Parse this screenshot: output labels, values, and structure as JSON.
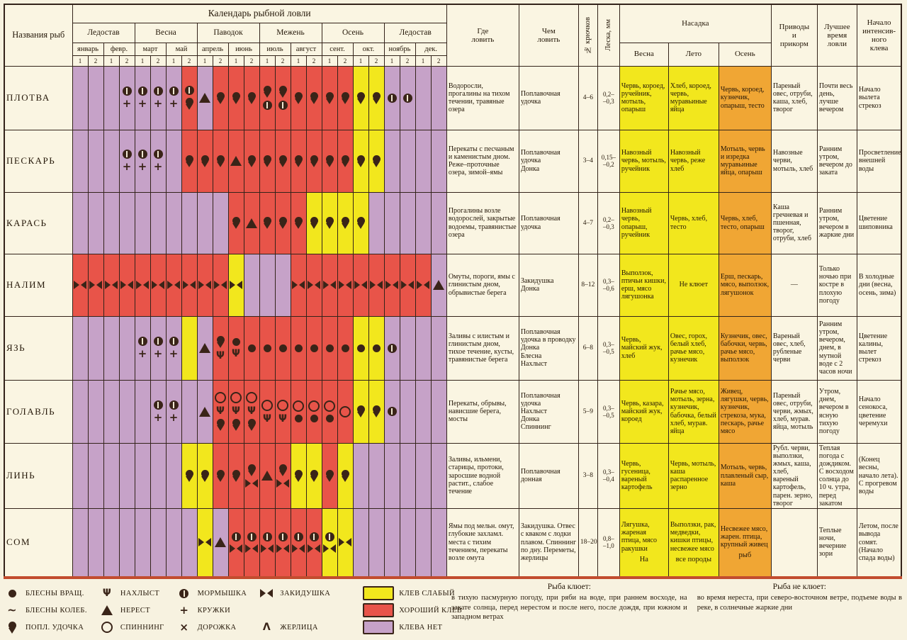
{
  "title": "Календарь рыбной ловли",
  "header": {
    "fish_col": "Названия\nрыб",
    "seasons": [
      "Ледостав",
      "Весна",
      "Паводок",
      "Межень",
      "Осень",
      "Ледостав"
    ],
    "months": [
      "январь",
      "февр.",
      "март",
      "май",
      "апрель",
      "июнь",
      "июль",
      "август",
      "сент.",
      "окт.",
      "ноябрь",
      "дек."
    ],
    "half_labels": [
      "1",
      "2"
    ],
    "where": "Где\nловить",
    "tackle": "Чем\nловить",
    "hooks": "№ крючков",
    "line": "Леска, мм",
    "bait": "Насадка",
    "bait_sub": [
      "Весна",
      "Лето",
      "Осень"
    ],
    "feed": "Приводы\nи\nприкорм",
    "best": "Лучшее\nвремя\nловли",
    "start": "Начало\nинтенсив-\nного\nклева"
  },
  "colors": {
    "good_bite": "#e85449",
    "weak_bite": "#f2e71d",
    "no_bite": "#c6a2c8",
    "bait_autumn": "#f0a634",
    "paper": "#faf5e2",
    "ink": "#3a2418"
  },
  "rows": [
    {
      "name": "ПЛОТВА",
      "cal": [
        "p",
        "p",
        "p",
        "p:morm+kru",
        "p:morm+kru",
        "p:morm+kru",
        "p:morm+kru",
        "r:morm+float",
        "p:nerest",
        "r:float",
        "r:float",
        "r:float",
        "r:float+morm",
        "r:float+morm",
        "r:float",
        "r:float",
        "r:float",
        "r:float",
        "y:float",
        "y:float",
        "p:morm",
        "p:morm",
        "p",
        "p"
      ],
      "where": "Водоросли, прогалины на тихом течении, травяные озера",
      "tackle": "Поплавочная удочка",
      "hooks": "4–6",
      "line": "0,2–\n–0,3",
      "spring": "Червь, короед, ручейник, мотыль, опарыш",
      "summer": "Хлеб, короед, червь, муравьиные яйца",
      "autumn": "Червь, короед, кузнечик, опарыш, тесто",
      "feed": "Пареный овес, отруби, каша, хлеб, творог",
      "best": "Почти весь день, лучше вечером",
      "start": "Начало вылета стрекоз"
    },
    {
      "name": "ПЕСКАРЬ",
      "cal": [
        "p",
        "p",
        "p",
        "p:morm+kru",
        "p:morm+kru",
        "p:morm+kru",
        "p",
        "r:float",
        "r:float",
        "r:float",
        "r:nerest",
        "r:float",
        "r:float",
        "r:float",
        "r:float",
        "r:float",
        "r:float",
        "r:float",
        "y:float",
        "y:float",
        "p",
        "p",
        "p",
        "p"
      ],
      "where": "Перекаты с песчаным и каменистым дном. Реже–проточные озера, зимой–ямы",
      "tackle": "Поплавочная удочка\nДонка",
      "hooks": "3–4",
      "line": "0,15–\n–0,2",
      "spring": "Навозный червь, мотыль, ручейник",
      "summer": "Навозный червь, реже хлеб",
      "autumn": "Мотыль, червь и изредка муравьиные яйца, опарыш",
      "feed": "Навозные черви, мотыль, хлеб",
      "best": "Ранним утром, вечером до заката",
      "start": "Просветление внешней воды"
    },
    {
      "name": "КАРАСЬ",
      "cal": [
        "p",
        "p",
        "p",
        "p",
        "p",
        "p",
        "p",
        "p",
        "p",
        "p",
        "r:float",
        "r:nerest",
        "r:float",
        "r:float",
        "r:float",
        "y:float",
        "y:float",
        "y:float",
        "y:float",
        "p",
        "p",
        "p",
        "p",
        "p"
      ],
      "where": "Прогалины возле водорослей, закрытые водоемы, травянистые озера",
      "tackle": "Поплавочная удочка",
      "hooks": "4–7",
      "line": "0,2–\n–0,3",
      "spring": "Навозный червь, опарыш, ручейник",
      "summer": "Червь, хлеб, тесто",
      "autumn": "Червь, хлеб, тесто, опарыш",
      "feed": "Каша гречневая и пшенная, творог, отруби, хлеб",
      "best": "Ранним утром, вечером в жаркие дни",
      "start": "Цветение шиповника"
    },
    {
      "name": "НАЛИМ",
      "cal": [
        "r:zakid",
        "r:zakid",
        "r:zakid",
        "r:zakid",
        "r:zakid",
        "r:zakid",
        "r:zakid",
        "r:zakid",
        "r:zakid",
        "r:zakid",
        "y:zakid",
        "p",
        "p",
        "p",
        "r:zakid",
        "r:zakid",
        "r:zakid",
        "r:zakid",
        "r:zakid",
        "r:zakid",
        "r:zakid",
        "r:zakid",
        "r:zakid",
        "p:nerest"
      ],
      "where": "Омуты, пороги, ямы с глинистым дном, обрывистые берега",
      "tackle": "Закидушка\nДонка",
      "hooks": "8–12",
      "line": "0,3–\n–0,6",
      "spring": "Выползок, птичьи кишки, ерш, мясо лягушонка",
      "summer": "Не клюет",
      "autumn": "Ерш, пескарь, мясо, выползок, лягушонок",
      "feed": "—",
      "best": "Только ночью при костре в плохую погоду",
      "start": "В холодные дни (весна, осень, зима)"
    },
    {
      "name": "ЯЗЬ",
      "cal": [
        "p",
        "p",
        "p",
        "p",
        "p:morm+kru",
        "p:morm+kru",
        "p:morm+kru",
        "y",
        "p:nerest",
        "r:float+nakh",
        "r:vrash+nakh",
        "r:vrash",
        "r:vrash",
        "r:vrash",
        "r:vrash",
        "r:vrash",
        "r:vrash",
        "r:vrash",
        "y:vrash",
        "y:vrash",
        "p:morm",
        "p",
        "p",
        "p"
      ],
      "where": "Заливы с илистым и глинистым дном, тихое течение, кусты, травянистые берега",
      "tackle": "Поплавочная удочка в проводку\nДонка\nБлесна\nНахлыст",
      "hooks": "6–8",
      "line": "0,3–\n–0,5",
      "spring": "Червь, майский жук, хлеб",
      "summer": "Овес, горох, белый хлеб, рачье мясо, кузнечик",
      "autumn": "Кузнечик, овес, бабочки, червь, рачье мясо, выползок",
      "feed": "Вареный овес, хлеб, рубленые черви",
      "best": "Ранним утром, вечером, днем, в мутной воде с 2 часов ночи",
      "start": "Цветение калины, вылет стрекоз"
    },
    {
      "name": "ГОЛАВЛЬ",
      "cal": [
        "p",
        "p",
        "p",
        "p",
        "p",
        "p:morm+kru",
        "p:morm+kru",
        "p",
        "p:nerest",
        "r:spin+nakh+float",
        "r:spin+nakh+float",
        "r:spin+nakh+float",
        "r:spin+nakh",
        "r:spin+nakh",
        "r:spin+vrash",
        "r:spin+vrash",
        "r:spin+vrash",
        "r:spin",
        "y:float",
        "y:float",
        "p:morm",
        "p",
        "p",
        "p"
      ],
      "where": "Перекаты, обрывы, нависшие берега, мосты",
      "tackle": "Поплавочная удочка\nНахлыст\nДонка\nСпиннинг",
      "hooks": "5–9",
      "line": "0,3–\n–0,5",
      "spring": "Червь, казара, майский жук, короед",
      "summer": "Рачье мясо, мотыль, зерна, кузнечик, бабочка, белый хлеб, мурав. яйца",
      "autumn": "Живец, лягушки, червь, кузнечик, стрекоза, мука, пескарь, рачье мясо",
      "feed": "Пареный овес, отруби, черви, жмых, хлеб, мурав. яйца, мотыль",
      "best": "Утром, днем, вечером в ясную тихую погоду",
      "start": "Начало сенокоса, цветение черемухи"
    },
    {
      "name": "ЛИНЬ",
      "cal": [
        "p",
        "p",
        "p",
        "p",
        "p",
        "p",
        "p",
        "y:float",
        "y:float",
        "r:float",
        "r:float",
        "r:float+zakid",
        "r:nerest",
        "r:float+zakid",
        "y:float",
        "y:float",
        "r:float",
        "y:float",
        "p",
        "p",
        "p",
        "p",
        "p",
        "p"
      ],
      "where": "Заливы, ильмени, старицы, протоки, заросшие водной растит., слабое течение",
      "tackle": "Поплавочная донная",
      "hooks": "3–8",
      "line": "0,3–\n–0,4",
      "spring": "Червь, гусеница, вареный картофель",
      "summer": "Червь, мотыль, каша распаренное зерно",
      "autumn": "Мотыль, червь, плавленый сыр, каша",
      "feed": "Рубл. черви, выползки, жмых, каша, хлеб, вареный картофель, парен. зерно, творог",
      "best": "Теплая погода с дождиком. С восходом солнца до 10 ч. утра, перед закатом",
      "start": "(Конец весны, начало лета). С прогревом воды"
    },
    {
      "name": "СОМ",
      "cal": [
        "p",
        "p",
        "p",
        "p",
        "p",
        "p",
        "p",
        "p",
        "y:zakid",
        "p:nerest",
        "r:morm+zakid",
        "r:morm+zakid",
        "r:morm+zakid",
        "r:morm+zakid",
        "r:morm+zakid",
        "r:morm+zakid",
        "y:morm+zakid",
        "y:zakid",
        "p",
        "p",
        "p",
        "p",
        "p",
        "p"
      ],
      "where": "Ямы под мельн. омут, глубокие захламл. места с тихим течением, перекаты возле омута",
      "tackle": "Закидушка. Отвес с кваком с лодки плавом. Спиннинг по дну. Переметы, жерлицы",
      "hooks": "18–20",
      "line": "0,8–\n–1,0",
      "spring": "Лягушка, жареная птица, мясо ракушки",
      "summer": "Выползки, рак, медведки, кишки птицы, несвежее мясо",
      "autumn": "Несвежее мясо, жарен. птица, крупный живец",
      "feed": "",
      "best": "Теплые ночи, вечерние зори",
      "start": "Летом, после вывода сомят. (Начало спада воды)",
      "spring_note": "На",
      "summer_note": "все породы",
      "autumn_note": "рыб"
    }
  ],
  "legend": {
    "groups": [
      [
        {
          "icon": "vrash",
          "label": "БЛЕСНЫ ВРАЩ."
        },
        {
          "icon": "koleb",
          "label": "БЛЕСНЫ КОЛЕБ."
        },
        {
          "icon": "float",
          "label": "ПОПЛ. УДОЧКА"
        }
      ],
      [
        {
          "icon": "nakh",
          "label": "НАХЛЫСТ"
        },
        {
          "icon": "nerest",
          "label": "НЕРЕСТ"
        },
        {
          "icon": "spin",
          "label": "СПИННИНГ"
        }
      ],
      [
        {
          "icon": "morm",
          "label": "МОРМЫШКА"
        },
        {
          "icon": "kru",
          "label": "КРУЖКИ"
        },
        {
          "icon": "dorozh",
          "label": "ДОРОЖКА"
        }
      ],
      [
        {
          "icon": "zakid",
          "label": "ЗАКИДУШКА"
        },
        {
          "icon": "zherl",
          "label": "ЖЕРЛИЦА"
        }
      ]
    ],
    "colors": [
      {
        "key": "y",
        "label": "КЛЕВ СЛАБЫЙ",
        "hex": "#f2e71d"
      },
      {
        "key": "r",
        "label": "ХОРОШИЙ КЛЕВ",
        "hex": "#e85449"
      },
      {
        "key": "p",
        "label": "КЛЕВА НЕТ",
        "hex": "#c6a2c8"
      }
    ]
  },
  "notes": {
    "bites_title": "Рыба клюет:",
    "bites_text": "в тихую пасмурную погоду, при ряби на воде, при раннем восходе, на закате солнца, перед нерестом и после него, после дождя, при южном и западном ветрах",
    "no_bites_title": "Рыба не клюет:",
    "no_bites_text": "во время нереста, при северо-восточном ветре, подъеме воды в реке, в солнечные жаркие дни"
  }
}
